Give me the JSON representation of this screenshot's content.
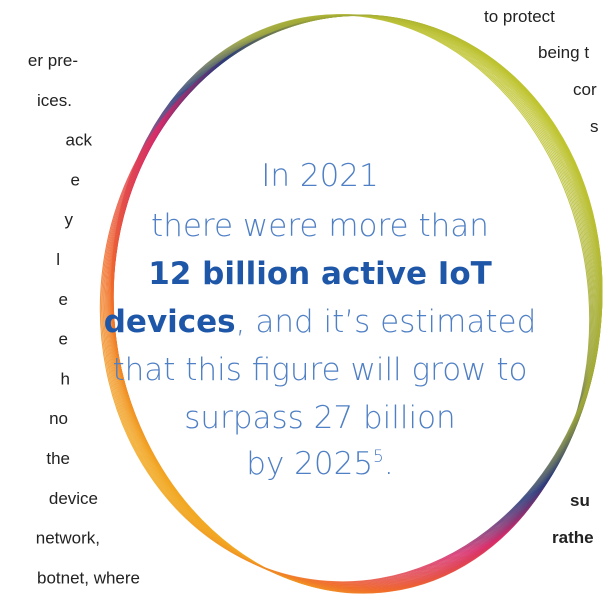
{
  "left_column": {
    "lines": [
      "er pre-",
      "ices.",
      "ack",
      "e",
      "y",
      "l",
      "e",
      "e",
      "h",
      "no",
      "the",
      "device",
      "network,",
      "botnet, where"
    ]
  },
  "right_column": {
    "lines": [
      "to protect",
      "being t",
      "cor",
      "s"
    ],
    "bold_lines": [
      "su",
      "rathe"
    ]
  },
  "callout": {
    "line1": "In 2021",
    "line2": "there were more than",
    "highlight_line": "12 billion active IoT",
    "highlight_word": "devices",
    "line4_rest": ", and it’s estimated",
    "line5": "that this figure will grow to",
    "line6": "surpass 27 billion",
    "line7": "by 2025",
    "footnote": "5",
    "end": "."
  }
}
